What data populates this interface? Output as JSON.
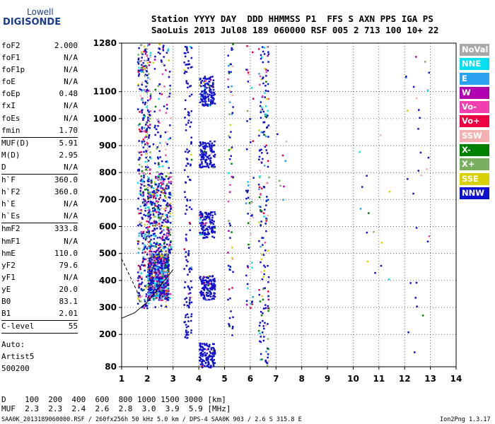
{
  "logo": {
    "top": "Lowell",
    "bottom": "DIGISONDE"
  },
  "header": {
    "row1": "Station YYYY DAY  DDD HHMMSS P1  FFS S AXN PPS IGA PS",
    "row2": "SaoLuis 2013 Jul08 189 060000 RSF 005 2 713 100 10+ 22"
  },
  "params": [
    {
      "name": "foF2",
      "value": "2.000"
    },
    {
      "name": "foF1",
      "value": "N/A"
    },
    {
      "name": "foF1p",
      "value": "N/A"
    },
    {
      "name": "foE",
      "value": "N/A"
    },
    {
      "name": "foEp",
      "value": "0.48"
    },
    {
      "name": "fxI",
      "value": "N/A"
    },
    {
      "name": "foEs",
      "value": "N/A"
    },
    {
      "name": "fmin",
      "value": "1.70",
      "sep": true
    },
    {
      "name": "MUF(D)",
      "value": "5.91"
    },
    {
      "name": "M(D)",
      "value": "2.95"
    },
    {
      "name": "D",
      "value": "N/A",
      "sep": true
    },
    {
      "name": "h`F",
      "value": "360.0"
    },
    {
      "name": "h`F2",
      "value": "360.0"
    },
    {
      "name": "h`E",
      "value": "N/A"
    },
    {
      "name": "h`Es",
      "value": "N/A",
      "sep": true
    },
    {
      "name": "hmF2",
      "value": "333.8"
    },
    {
      "name": "hmF1",
      "value": "N/A"
    },
    {
      "name": "hmE",
      "value": "110.0"
    },
    {
      "name": "yF2",
      "value": "79.6"
    },
    {
      "name": "yF1",
      "value": "N/A"
    },
    {
      "name": "yE",
      "value": "20.0"
    },
    {
      "name": "B0",
      "value": "83.1"
    },
    {
      "name": "B1",
      "value": "2.01",
      "sep": true
    },
    {
      "name": "C-level",
      "value": "55",
      "sep": true
    }
  ],
  "autoscale": {
    "label": "Auto:",
    "artist": "Artist5",
    "version": "500200"
  },
  "legend": [
    {
      "label": "NoVal",
      "color": "#a8a8a8"
    },
    {
      "label": "NNE",
      "color": "#00e0f0"
    },
    {
      "label": "E",
      "color": "#2aa0f0"
    },
    {
      "label": "W",
      "color": "#b000b0"
    },
    {
      "label": "Vo-",
      "color": "#f040b0"
    },
    {
      "label": "Vo+",
      "color": "#ee0040"
    },
    {
      "label": "SSW",
      "color": "#f4b0b0"
    },
    {
      "label": "X-",
      "color": "#008000"
    },
    {
      "label": "X+",
      "color": "#78b060"
    },
    {
      "label": "SSE",
      "color": "#d8d000"
    },
    {
      "label": "NNW",
      "color": "#1010d0"
    }
  ],
  "footer": {
    "d_row": "D    100  200  400  600  800 1000 1500 3000 [km]",
    "muf_row": "MUF  2.3  2.3  2.4  2.6  2.8  3.0  3.9  5.9 [MHz]",
    "file_line": "SAA0K_2013189060000.RSF / 260fx256h 50 kHz 5.0 km / DPS-4 SAA0K 903 / 2.6 S 315.8 E",
    "version": "Ion2Png 1.3.17"
  },
  "chart_data": {
    "type": "scatter",
    "xlim": [
      1,
      14
    ],
    "ylim": [
      80,
      1280
    ],
    "x_ticks": [
      1,
      2,
      3,
      4,
      5,
      6,
      7,
      8,
      9,
      10,
      11,
      12,
      13,
      14
    ],
    "y_ticks": [
      80,
      200,
      300,
      400,
      500,
      600,
      700,
      800,
      900,
      1000,
      1100,
      1280
    ],
    "grid": true,
    "clusters": [
      {
        "x": [
          1.6,
          2.1
        ],
        "y": [
          300,
          1280
        ],
        "n": 420,
        "mix": true
      },
      {
        "x": [
          2.0,
          2.8
        ],
        "y": [
          330,
          500
        ],
        "n": 700,
        "mix": true
      },
      {
        "x": [
          2.0,
          2.9
        ],
        "y": [
          500,
          800
        ],
        "n": 350,
        "mix": true
      },
      {
        "x": [
          2.2,
          2.9
        ],
        "y": [
          300,
          1280
        ],
        "n": 160,
        "mix": true
      },
      {
        "x": [
          3.4,
          3.7
        ],
        "y": [
          180,
          1280
        ],
        "n": 150,
        "mix": false
      },
      {
        "x": [
          4.0,
          4.6
        ],
        "y": [
          1050,
          1160
        ],
        "n": 130,
        "mix": false
      },
      {
        "x": [
          4.0,
          4.6
        ],
        "y": [
          820,
          920
        ],
        "n": 110,
        "mix": false
      },
      {
        "x": [
          4.0,
          4.6
        ],
        "y": [
          560,
          660
        ],
        "n": 120,
        "mix": false
      },
      {
        "x": [
          4.0,
          4.6
        ],
        "y": [
          330,
          420
        ],
        "n": 130,
        "mix": false
      },
      {
        "x": [
          4.0,
          4.6
        ],
        "y": [
          80,
          170
        ],
        "n": 120,
        "mix": false
      },
      {
        "x": [
          5.1,
          5.3
        ],
        "y": [
          200,
          1280
        ],
        "n": 70,
        "mix": true
      },
      {
        "x": [
          5.8,
          6.1
        ],
        "y": [
          300,
          1280
        ],
        "n": 50,
        "mix": true
      },
      {
        "x": [
          6.3,
          6.7
        ],
        "y": [
          80,
          1280
        ],
        "n": 200,
        "mix": true
      },
      {
        "x": [
          7.0,
          7.4
        ],
        "y": [
          600,
          950
        ],
        "n": 8,
        "mix": true
      },
      {
        "x": [
          10.0,
          11.5
        ],
        "y": [
          330,
          1000
        ],
        "n": 14,
        "mix": true
      },
      {
        "x": [
          12.0,
          13.0
        ],
        "y": [
          130,
          1250
        ],
        "n": 30,
        "mix": true
      }
    ],
    "curves": [
      {
        "style": "dashed",
        "points": [
          [
            1.0,
            480
          ],
          [
            1.3,
            420
          ],
          [
            1.6,
            360
          ],
          [
            1.7,
            320
          ]
        ]
      },
      {
        "style": "solid",
        "points": [
          [
            1.0,
            260
          ],
          [
            1.5,
            280
          ],
          [
            2.0,
            320
          ],
          [
            2.5,
            380
          ],
          [
            3.0,
            440
          ]
        ]
      }
    ]
  }
}
